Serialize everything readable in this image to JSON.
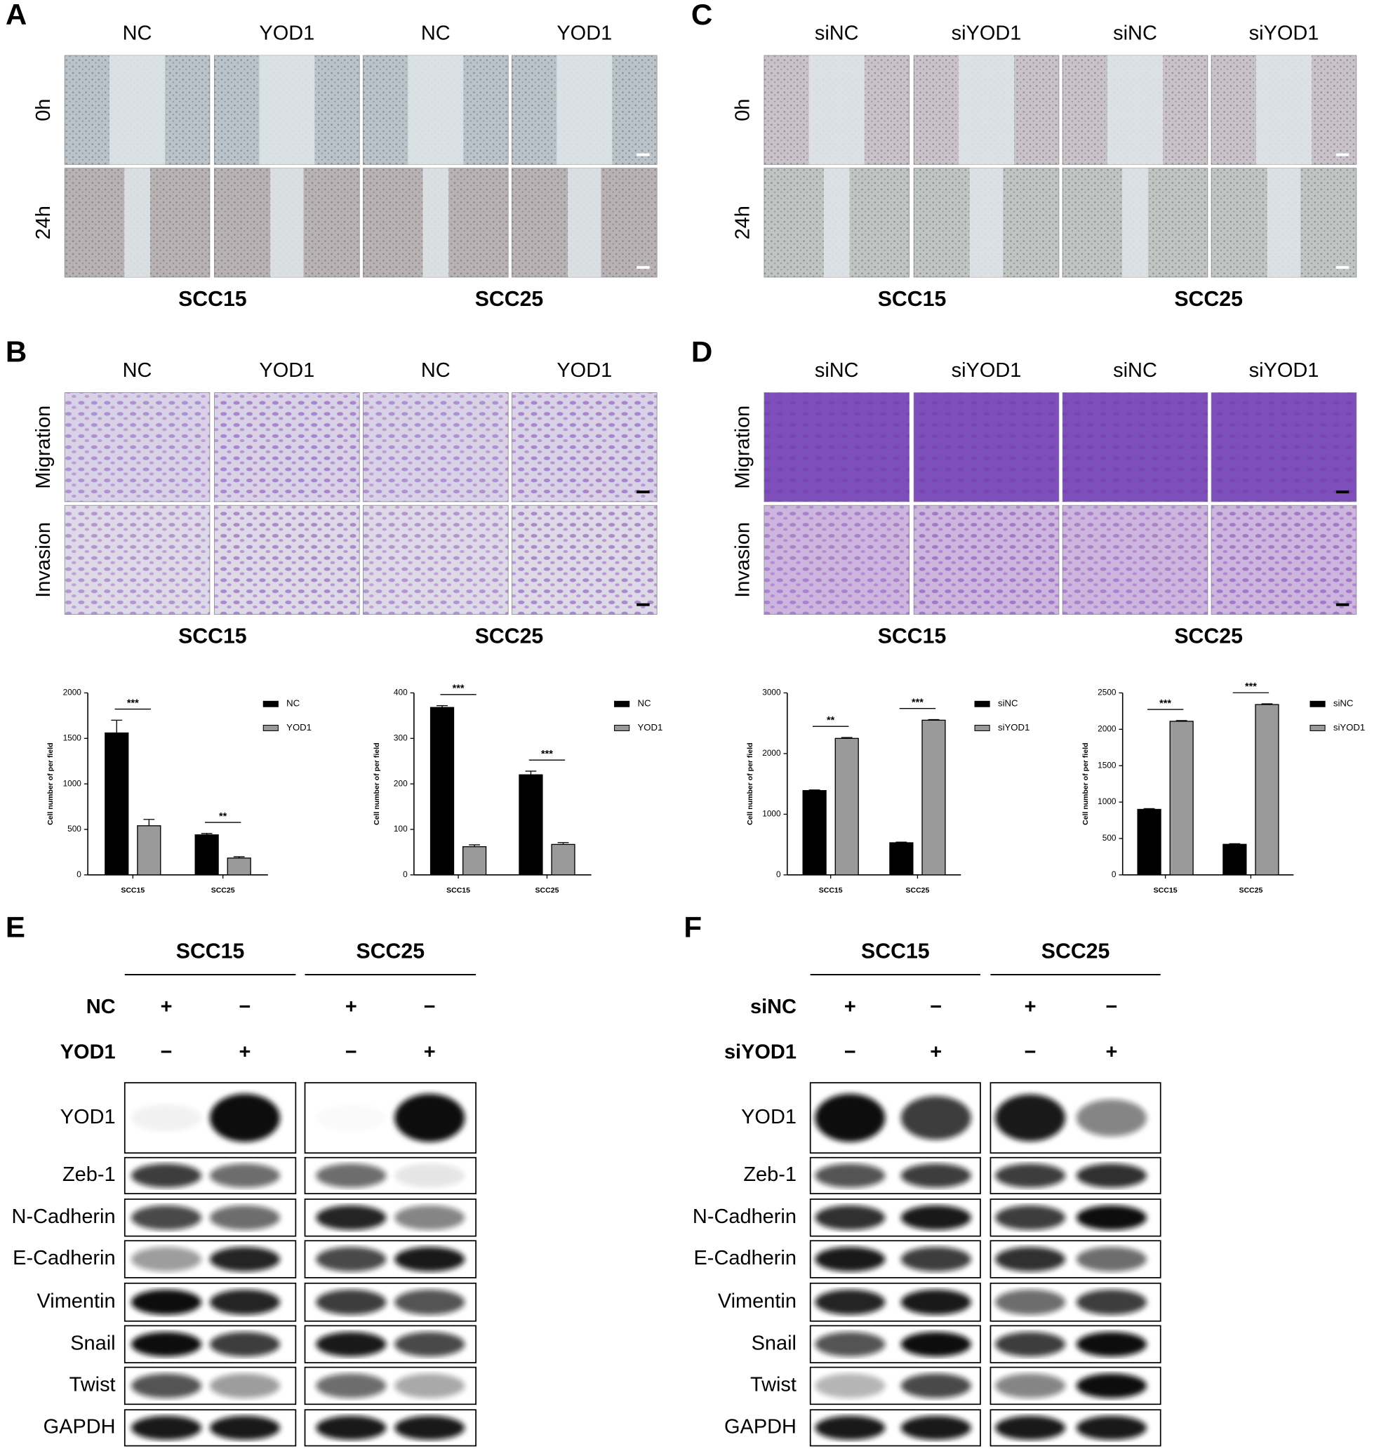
{
  "panels": {
    "A": {
      "label": "A",
      "columns": [
        "NC",
        "YOD1",
        "NC",
        "YOD1"
      ],
      "rows": [
        "0h",
        "24h"
      ],
      "cell_lines": [
        "SCC15",
        "SCC25"
      ]
    },
    "B": {
      "label": "B",
      "columns": [
        "NC",
        "YOD1",
        "NC",
        "YOD1"
      ],
      "rows": [
        "Migration",
        "Invasion"
      ],
      "cell_lines": [
        "SCC15",
        "SCC25"
      ]
    },
    "C": {
      "label": "C",
      "columns": [
        "siNC",
        "siYOD1",
        "siNC",
        "siYOD1"
      ],
      "rows": [
        "0h",
        "24h"
      ],
      "cell_lines": [
        "SCC15",
        "SCC25"
      ]
    },
    "D": {
      "label": "D",
      "columns": [
        "siNC",
        "siYOD1",
        "siNC",
        "siYOD1"
      ],
      "rows": [
        "Migration",
        "Invasion"
      ],
      "cell_lines": [
        "SCC15",
        "SCC25"
      ]
    },
    "E": {
      "label": "E",
      "cell_lines": [
        "SCC15",
        "SCC25"
      ],
      "conditions": [
        {
          "name": "NC",
          "signs": [
            "+",
            "−",
            "+",
            "−"
          ]
        },
        {
          "name": "YOD1",
          "signs": [
            "−",
            "+",
            "−",
            "+"
          ]
        }
      ],
      "proteins": [
        "YOD1",
        "Zeb-1",
        "N-Cadherin",
        "E-Cadherin",
        "Vimentin",
        "Snail",
        "Twist",
        "GAPDH"
      ]
    },
    "F": {
      "label": "F",
      "cell_lines": [
        "SCC15",
        "SCC25"
      ],
      "conditions": [
        {
          "name": "siNC",
          "signs": [
            "+",
            "−",
            "+",
            "−"
          ]
        },
        {
          "name": "siYOD1",
          "signs": [
            "−",
            "+",
            "−",
            "+"
          ]
        }
      ],
      "proteins": [
        "YOD1",
        "Zeb-1",
        "N-Cadherin",
        "E-Cadherin",
        "Vimentin",
        "Snail",
        "Twist",
        "GAPDH"
      ]
    }
  },
  "chart_data": [
    {
      "type": "bar",
      "y_label": "Cell number of per field",
      "categories": [
        "SCC15",
        "SCC25"
      ],
      "ylim": [
        0,
        2000
      ],
      "yticks": [
        0,
        500,
        1000,
        1500,
        2000
      ],
      "annotations": [
        "***",
        "**"
      ],
      "series": [
        {
          "name": "NC",
          "color": "#000000",
          "values": [
            1560,
            440
          ],
          "errors": [
            140,
            15
          ]
        },
        {
          "name": "YOD1",
          "color": "#9a9a9a",
          "values": [
            540,
            185
          ],
          "errors": [
            70,
            15
          ]
        }
      ]
    },
    {
      "type": "bar",
      "y_label": "Cell number of per field",
      "categories": [
        "SCC15",
        "SCC25"
      ],
      "ylim": [
        0,
        400
      ],
      "yticks": [
        0,
        100,
        200,
        300,
        400
      ],
      "annotations": [
        "***",
        "***"
      ],
      "series": [
        {
          "name": "NC",
          "color": "#000000",
          "values": [
            368,
            220
          ],
          "errors": [
            4,
            8
          ]
        },
        {
          "name": "YOD1",
          "color": "#9a9a9a",
          "values": [
            62,
            67
          ],
          "errors": [
            4,
            4
          ]
        }
      ]
    },
    {
      "type": "bar",
      "y_label": "Cell number of per field",
      "categories": [
        "SCC15",
        "SCC25"
      ],
      "ylim": [
        0,
        3000
      ],
      "yticks": [
        0,
        1000,
        2000,
        3000
      ],
      "annotations": [
        "**",
        "***"
      ],
      "series": [
        {
          "name": "siNC",
          "color": "#000000",
          "values": [
            1390,
            530
          ],
          "errors": [
            10,
            10
          ]
        },
        {
          "name": "siYOD1",
          "color": "#9a9a9a",
          "values": [
            2250,
            2550
          ],
          "errors": [
            15,
            10
          ]
        }
      ]
    },
    {
      "type": "bar",
      "y_label": "Cell number of per field",
      "categories": [
        "SCC15",
        "SCC25"
      ],
      "ylim": [
        0,
        2500
      ],
      "yticks": [
        0,
        500,
        1000,
        1500,
        2000,
        2500
      ],
      "annotations": [
        "***",
        "***"
      ],
      "series": [
        {
          "name": "siNC",
          "color": "#000000",
          "values": [
            900,
            420
          ],
          "errors": [
            10,
            8
          ]
        },
        {
          "name": "siYOD1",
          "color": "#9a9a9a",
          "values": [
            2110,
            2340
          ],
          "errors": [
            10,
            10
          ]
        }
      ]
    }
  ]
}
